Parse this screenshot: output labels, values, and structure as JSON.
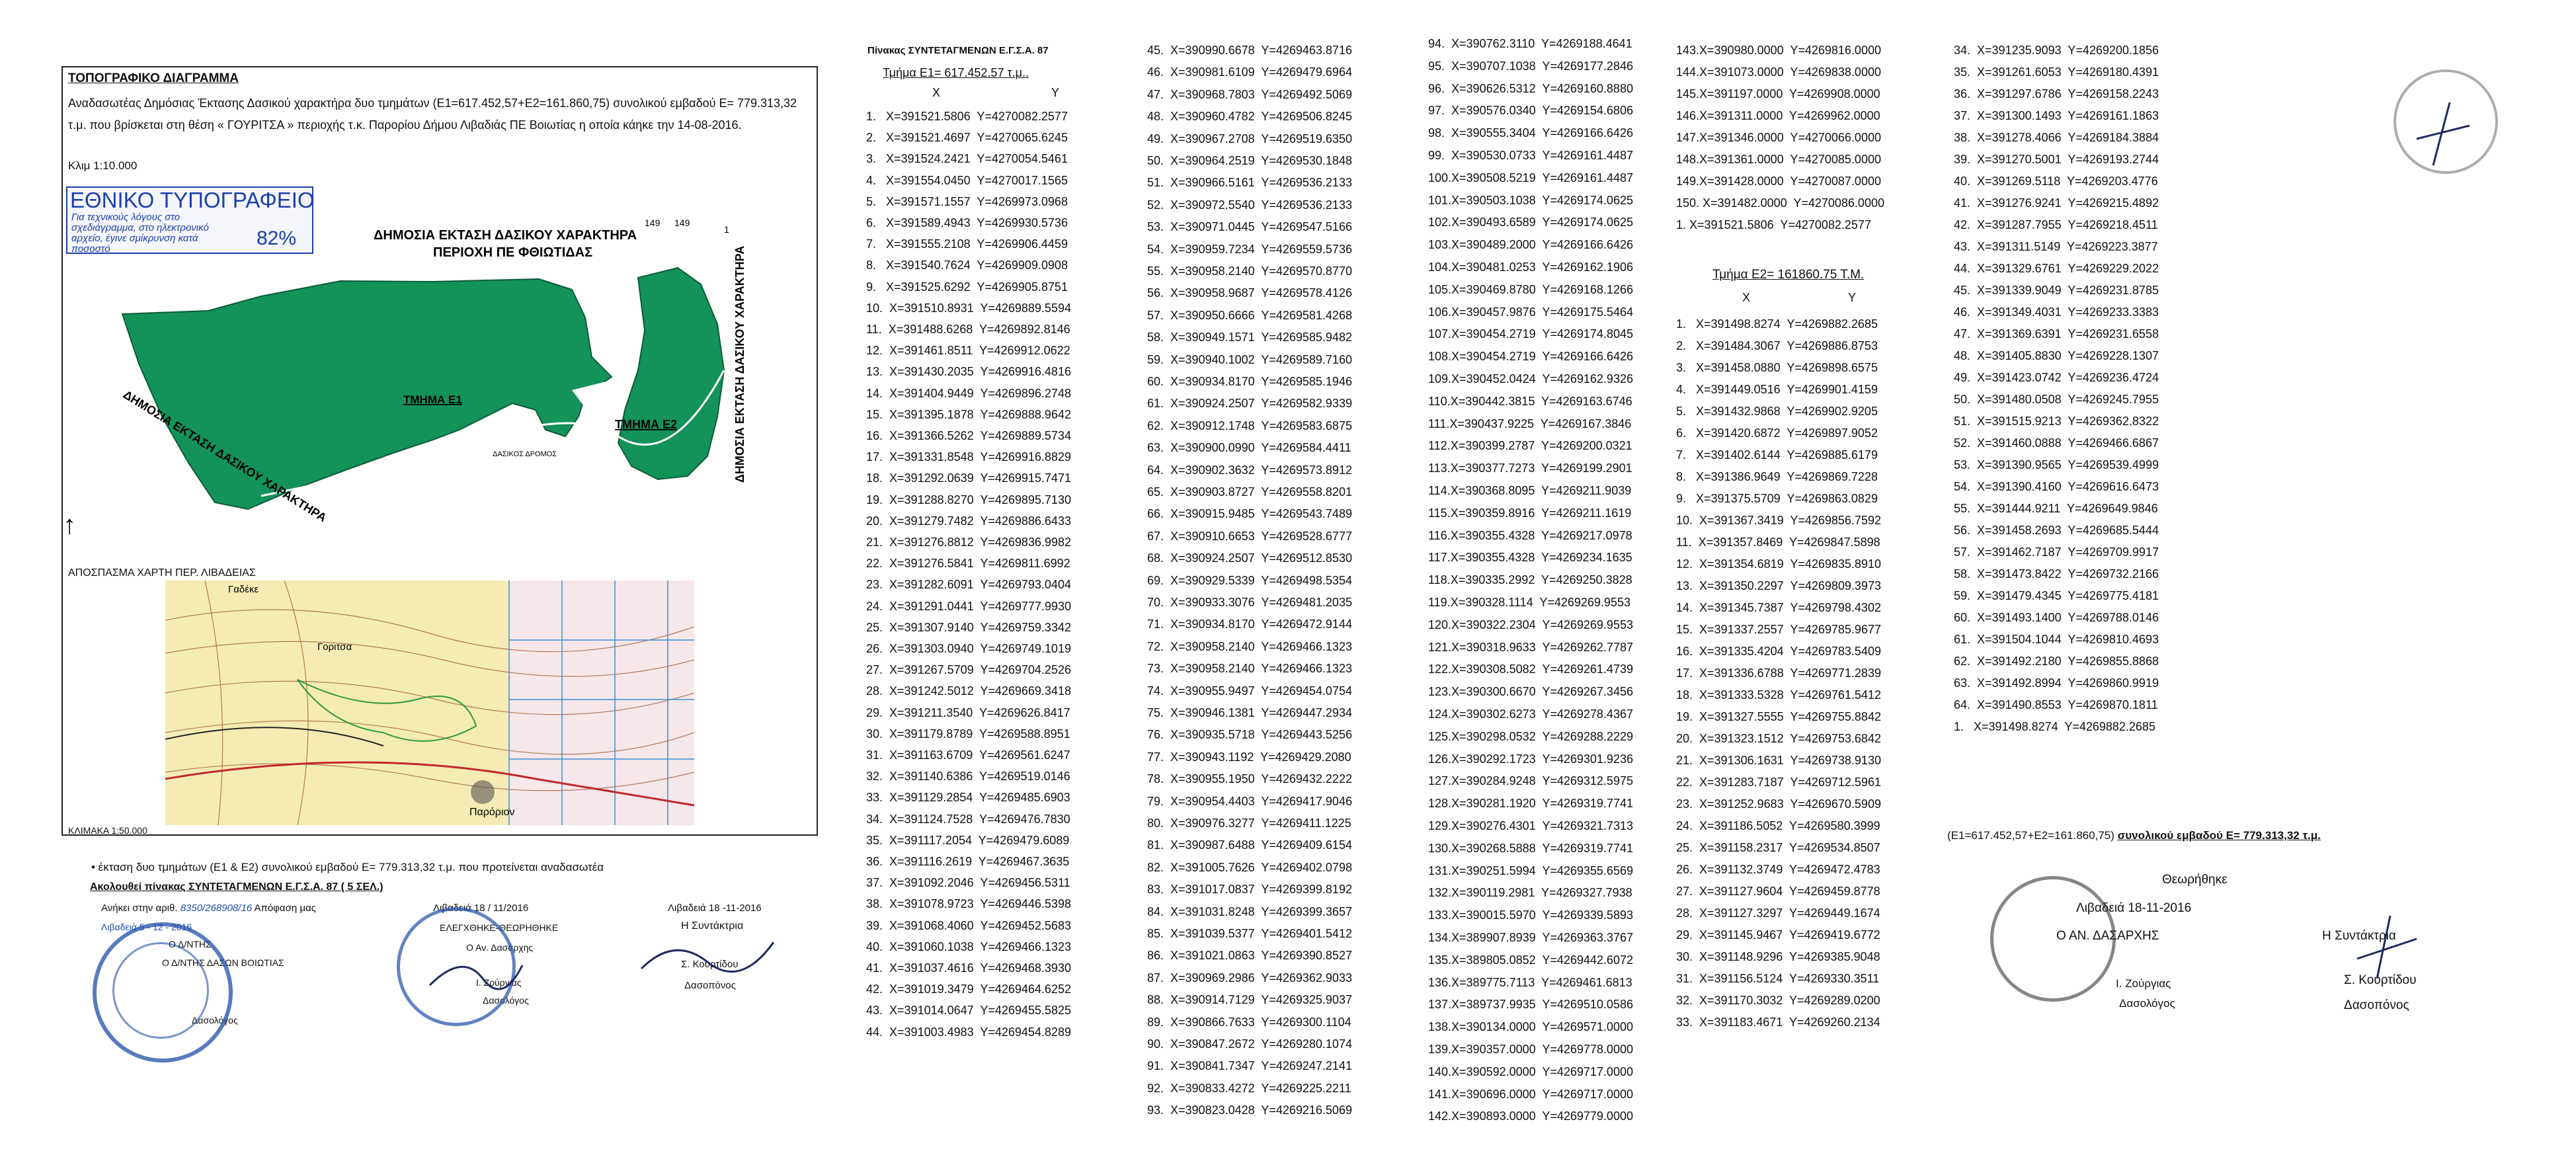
{
  "left_sheet": {
    "title": "ΤΟΠΟΓΡΑΦΙΚΟ ΔΙΑΓΡΑΜΜΑ",
    "description": "Αναδασωτέας Δημόσιας Έκτασης Δασικού χαρακτήρα δυο τμημάτων (Ε1=617.452,57+Ε2=161.860,75) συνολικού εμβαδού Ε= 779.313,32 τ.μ. που βρίσκεται στη θέση « ΓΟΥΡΙΤΣΑ » περιοχής τ.κ. Παρορίου Δήμου Λιβαδιάς ΠΕ Βοιωτίας η οποία κάηκε την 14-08-2016.",
    "scale": "Κλιμ 1:10.000",
    "badge": {
      "title": "ΕΘΝΙΚΟ ΤΥΠΟΓΡΑΦΕΙΟ",
      "text": "Για τεχνικούς λόγους στο σχεδιάγραμμα, στο ηλεκτρονικό αρχείο, έγινε σμίκρυνση κατά ποσοστό",
      "percent": "82%"
    },
    "map_labels": {
      "north_area": "ΔΗΜΟΣΙΑ ΕΚΤΑΣΗ ΔΑΣΙΚΟΥ ΧΑΡΑΚΤΗΡΑ",
      "north_area2": "ΠΕΡΙΟΧΗ ΠΕ ΦΘΙΩΤΙΔΑΣ",
      "section1": "ΤΜΗΜΑ Ε1",
      "section2": "ΤΜΗΜΑ Ε2",
      "east_area": "ΔΗΜΟΣΙΑ ΕΚΤΑΣΗ ΔΑΣΙΚΟΥ ΧΑΡΑΚΤΗΡΑ",
      "west_area": "ΔΗΜΟΣΙΑ ΕΚΤΑΣΗ ΔΑΣΙΚΟΥ ΧΑΡΑΚΤΗΡΑ",
      "road": "ΔΑΣΙΚΟΣ ΔΡΟΜΟΣ",
      "point_a": "149",
      "point_b": "149",
      "point_c": "1"
    },
    "inset_caption": "ΑΠΟΣΠΑΣΜΑ ΧΑΡΤΗ ΠΕΡ. ΛΙΒΑΔΕΙΑΣ",
    "inset_scale": "ΚΛΙΜΑΚΑ 1:50.000",
    "inset_labels": {
      "village": "Παρόριον",
      "place1": "Γαδέκε",
      "place2": "Γοριτσα"
    },
    "note": "•   έκταση δυο τμημάτων (Ε1 & Ε2)  συνολικού εμβαδού Ε= 779.313,32 τ.μ. που προτείνεται αναδασωτέα",
    "note2": "Ακολουθεί πίνακας ΣΥΝΤΕΤΑΓΜΕΝΩΝ Ε.Γ.Σ.Α. 87  ( 5 ΣΕΛ.)",
    "belongs": "Ανήκει στην αριθ.",
    "belongs_num": "8350/268908/16",
    "decision": "Απόφαση    μας",
    "place_date_mid": "Λιβαδειά 18 / 11/2016",
    "place_date_right": "Λιβαδειά 18 -11-2016",
    "place_date_left": "Λιβαδειά 5 - 12 - 2016",
    "checked": "ΕΛΕΓΧΘΗΚΕ-ΘΕΩΡΗΘΗΚΕ",
    "director": "Ο Αν. Δασάρχης",
    "sig_mid_name": "Ι. Ζούργιας",
    "sig_mid_role": "Δασολόγος",
    "org1": "Ο Δ/ΝΤΗΣ",
    "org2": "Ο Δ/ΝΤΗΣ ΔΑΣΩΝ ΒΟΙΩΤΙΑΣ",
    "sig_left_role": "Δασολόγος",
    "sig_title": "Η  Συντάκτρια",
    "sig_name": "Σ. Κουρτίδου",
    "sig_role": "Δασοπόνος"
  },
  "table": {
    "title": "Πίνακας ΣΥΝΤΕΤΑΓΜΕΝΩΝ Ε.Γ.Σ.Α. 87",
    "e1_title": "Τμήμα Ε1=  617.452.57 τ.μ..",
    "e2_title": "Τμήμα  Ε2= 161860.75 Τ.Μ.",
    "col_x": "X",
    "col_y": "Y",
    "e1_col1": [
      "1.   X=391521.5806  Y=4270082.2577",
      "2.   X=391521.4697  Y=4270065.6245",
      "3.   X=391524.2421  Y=4270054.5461",
      "4.   X=391554.0450  Y=4270017.1565",
      "5.   X=391571.1557  Y=4269973.0968",
      "6.   X=391589.4943  Y=4269930.5736",
      "7.   X=391555.2108  Y=4269906.4459",
      "8.   X=391540.7624  Y=4269909.0908",
      "9.   X=391525.6292  Y=4269905.8751",
      "10.  X=391510.8931  Y=4269889.5594",
      "11.  X=391488.6268  Y=4269892.8146",
      "12.  X=391461.8511  Y=4269912.0622",
      "13.  X=391430.2035  Y=4269916.4816",
      "14.  X=391404.9449  Y=4269896.2748",
      "15.  X=391395.1878  Y=4269888.9642",
      "16.  X=391366.5262  Y=4269889.5734",
      "17.  X=391331.8548  Y=4269916.8829",
      "18.  X=391292.0639  Y=4269915.7471",
      "19.  X=391288.8270  Y=4269895.7130",
      "20.  X=391279.7482  Y=4269886.6433",
      "21.  X=391276.8812  Y=4269836.9982",
      "22.  X=391276.5841  Y=4269811.6992",
      "23.  X=391282.6091  Y=4269793.0404",
      "24.  X=391291.0441  Y=4269777.9930",
      "25.  X=391307.9140  Y=4269759.3342",
      "26.  X=391303.0940  Y=4269749.1019",
      "27.  X=391267.5709  Y=4269704.2526",
      "28.  X=391242.5012  Y=4269669.3418",
      "29.  X=391211.3540  Y=4269626.8417",
      "30.  X=391179.8789  Y=4269588.8951",
      "31.  X=391163.6709  Y=4269561.6247",
      "32.  X=391140.6386  Y=4269519.0146",
      "33.  X=391129.2854  Y=4269485.6903",
      "34.  X=391124.7528  Y=4269476.7830",
      "35.  X=391117.2054  Y=4269479.6089",
      "36.  X=391116.2619  Y=4269467.3635",
      "37.  X=391092.2046  Y=4269456.5311",
      "38.  X=391078.9723  Y=4269446.5398",
      "39.  X=391068.4060  Y=4269452.5683",
      "40.  X=391060.1038  Y=4269466.1323",
      "41.  X=391037.4616  Y=4269468.3930",
      "42.  X=391019.3479  Y=4269464.6252",
      "43.  X=391014.0647  Y=4269455.5825",
      "44.  X=391003.4983  Y=4269454.8289"
    ],
    "e1_col2": [
      "45.  X=390990.6678  Y=4269463.8716",
      "46.  X=390981.6109  Y=4269479.6964",
      "47.  X=390968.7803  Y=4269492.5069",
      "48.  X=390960.4782  Y=4269506.8245",
      "49.  X=390967.2708  Y=4269519.6350",
      "50.  X=390964.2519  Y=4269530.1848",
      "51.  X=390966.5161  Y=4269536.2133",
      "52.  X=390972.5540  Y=4269536.2133",
      "53.  X=390971.0445  Y=4269547.5166",
      "54.  X=390959.7234  Y=4269559.5736",
      "55.  X=390958.2140  Y=4269570.8770",
      "56.  X=390958.9687  Y=4269578.4126",
      "57.  X=390950.6666  Y=4269581.4268",
      "58.  X=390949.1571  Y=4269585.9482",
      "59.  X=390940.1002  Y=4269589.7160",
      "60.  X=390934.8170  Y=4269585.1946",
      "61.  X=390924.2507  Y=4269582.9339",
      "62.  X=390912.1748  Y=4269583.6875",
      "63.  X=390900.0990  Y=4269584.4411",
      "64.  X=390902.3632  Y=4269573.8912",
      "65.  X=390903.8727  Y=4269558.8201",
      "66.  X=390915.9485  Y=4269543.7489",
      "67.  X=390910.6653  Y=4269528.6777",
      "68.  X=390924.2507  Y=4269512.8530",
      "69.  X=390929.5339  Y=4269498.5354",
      "70.  X=390933.3076  Y=4269481.2035",
      "71.  X=390934.8170  Y=4269472.9144",
      "72.  X=390958.2140  Y=4269466.1323",
      "73.  X=390958.2140  Y=4269466.1323",
      "74.  X=390955.9497  Y=4269454.0754",
      "75.  X=390946.1381  Y=4269447.2934",
      "76.  X=390935.5718  Y=4269443.5256",
      "77.  X=390943.1192  Y=4269429.2080",
      "78.  X=390955.1950  Y=4269432.2222",
      "79.  X=390954.4403  Y=4269417.9046",
      "80.  X=390976.3277  Y=4269411.1225",
      "81.  X=390987.6488  Y=4269409.6154",
      "82.  X=391005.7626  Y=4269402.0798",
      "83.  X=391017.0837  Y=4269399.8192",
      "84.  X=391031.8248  Y=4269399.3657",
      "85.  X=391039.5377  Y=4269401.5412",
      "86.  X=391021.0863  Y=4269390.8527",
      "87.  X=390969.2986  Y=4269362.9033",
      "88.  X=390914.7129  Y=4269325.9037",
      "89.  X=390866.7633  Y=4269300.1104",
      "90.  X=390847.2672  Y=4269280.1074",
      "91.  X=390841.7347  Y=4269247.2141",
      "92.  X=390833.4272  Y=4269225.2211",
      "93.  X=390823.0428  Y=4269216.5069"
    ],
    "e1_col3": [
      "94.  X=390762.3110  Y=4269188.4641",
      "95.  X=390707.1038  Y=4269177.2846",
      "96.  X=390626.5312  Y=4269160.8880",
      "97.  X=390576.0340  Y=4269154.6806",
      "98.  X=390555.3404  Y=4269166.6426",
      "99.  X=390530.0733  Y=4269161.4487",
      "100.X=390508.5219  Y=4269161.4487",
      "101.X=390503.1038  Y=4269174.0625",
      "102.X=390493.6589  Y=4269174.0625",
      "103.X=390489.2000  Y=4269166.6426",
      "104.X=390481.0253  Y=4269162.1906",
      "105.X=390469.8780  Y=4269168.1266",
      "106.X=390457.9876  Y=4269175.5464",
      "107.X=390454.2719  Y=4269174.8045",
      "108.X=390454.2719  Y=4269166.6426",
      "109.X=390452.0424  Y=4269162.9326",
      "110.X=390442.3815  Y=4269163.6746",
      "111.X=390437.9225  Y=4269167.3846",
      "112.X=390399.2787  Y=4269200.0321",
      "113.X=390377.7273  Y=4269199.2901",
      "114.X=390368.8095  Y=4269211.9039",
      "115.X=390359.8916  Y=4269211.1619",
      "116.X=390355.4328  Y=4269217.0978",
      "117.X=390355.4328  Y=4269234.1635",
      "118.X=390335.2992  Y=4269250.3828",
      "119.X=390328.1114  Y=4269269.9553",
      "120.X=390322.2304  Y=4269269.9553",
      "121.X=390318.9633  Y=4269262.7787",
      "122.X=390308.5082  Y=4269261.4739",
      "123.X=390300.6670  Y=4269267.3456",
      "124.X=390302.6273  Y=4269278.4367",
      "125.X=390298.0532  Y=4269288.2229",
      "126.X=390292.1723  Y=4269301.9236",
      "127.X=390284.9248  Y=4269312.5975",
      "128.X=390281.1920  Y=4269319.7741",
      "129.X=390276.4301  Y=4269321.7313",
      "130.X=390268.5888  Y=4269319.7741",
      "131.X=390251.5994  Y=4269355.6569",
      "132.X=390119.2981  Y=4269327.7938",
      "133.X=390015.5970  Y=4269339.5893",
      "134.X=389907.8939  Y=4269363.3767",
      "135.X=389805.0852  Y=4269442.6072",
      "136.X=389775.7113  Y=4269461.6813",
      "137.X=389737.9935  Y=4269510.0586",
      "138.X=390134.0000  Y=4269571.0000",
      "139.X=390357.0000  Y=4269778.0000",
      "140.X=390592.0000  Y=4269717.0000",
      "141.X=390696.0000  Y=4269717.0000",
      "142.X=390893.0000  Y=4269779.0000"
    ],
    "e1_col4": [
      "143.X=390980.0000  Y=4269816.0000",
      "144.X=391073.0000  Y=4269838.0000",
      "145.X=391197.0000  Y=4269908.0000",
      "146.X=391311.0000  Y=4269962.0000",
      "147.X=391346.0000  Y=4270066.0000",
      "148.X=391361.0000  Y=4270085.0000",
      "149.X=391428.0000  Y=4270087.0000",
      "150. X=391482.0000  Y=4270086.0000",
      "1. X=391521.5806  Y=4270082.2577"
    ],
    "e2_col4": [
      "1.   X=391498.8274  Y=4269882.2685",
      "2.   X=391484.3067  Y=4269886.8753",
      "3.   X=391458.0880  Y=4269898.6575",
      "4.   X=391449.0516  Y=4269901.4159",
      "5.   X=391432.9868  Y=4269902.9205",
      "6.   X=391420.6872  Y=4269897.9052",
      "7.   X=391402.6144  Y=4269885.6179",
      "8.   X=391386.9649  Y=4269869.7228",
      "9.   X=391375.5709  Y=4269863.0829",
      "10.  X=391367.3419  Y=4269856.7592",
      "11.  X=391357.8469  Y=4269847.5898",
      "12.  X=391354.6819  Y=4269835.8910",
      "13.  X=391350.2297  Y=4269809.3973",
      "14.  X=391345.7387  Y=4269798.4302",
      "15.  X=391337.2557  Y=4269785.9677",
      "16.  X=391335.4204  Y=4269783.5409",
      "17.  X=391336.6788  Y=4269771.2839",
      "18.  X=391333.5328  Y=4269761.5412",
      "19.  X=391327.5555  Y=4269755.8842",
      "20.  X=391323.1512  Y=4269753.6842",
      "21.  X=391306.1631  Y=4269738.9130",
      "22.  X=391283.7187  Y=4269712.5961",
      "23.  X=391252.9683  Y=4269670.5909",
      "24.  X=391186.5052  Y=4269580.3999",
      "25.  X=391158.2317  Y=4269534.8507",
      "26.  X=391132.3749  Y=4269472.4783",
      "27.  X=391127.9604  Y=4269459.8778",
      "28.  X=391127.3297  Y=4269449.1674",
      "29.  X=391145.9467  Y=4269419.6772",
      "30.  X=391148.9296  Y=4269385.9048",
      "31.  X=391156.5124  Y=4269330.3511",
      "32.  X=391170.3032  Y=4269289.0200",
      "33.  X=391183.4671  Y=4269260.2134"
    ],
    "e2_col5": [
      "34.  X=391235.9093  Y=4269200.1856",
      "35.  X=391261.6053  Y=4269180.4391",
      "36.  X=391297.6786  Y=4269158.2243",
      "37.  X=391300.1493  Y=4269161.1863",
      "38.  X=391278.4066  Y=4269184.3884",
      "39.  X=391270.5001  Y=4269193.2744",
      "40.  X=391269.5118  Y=4269203.4776",
      "41.  X=391276.9241  Y=4269215.4892",
      "42.  X=391287.7955  Y=4269218.4511",
      "43.  X=391311.5149  Y=4269223.3877",
      "44.  X=391329.6761  Y=4269229.2022",
      "45.  X=391339.9049  Y=4269231.8785",
      "46.  X=391349.4031  Y=4269233.3383",
      "47.  X=391369.6391  Y=4269231.6558",
      "48.  X=391405.8830  Y=4269228.1307",
      "49.  X=391423.0742  Y=4269236.4724",
      "50.  X=391480.0508  Y=4269245.7955",
      "51.  X=391515.9213  Y=4269362.8322",
      "52.  X=391460.0888  Y=4269466.6867",
      "53.  X=391390.9565  Y=4269539.4999",
      "54.  X=391390.4160  Y=4269616.6473",
      "55.  X=391444.9211  Y=4269649.9846",
      "56.  X=391458.2693  Y=4269685.5444",
      "57.  X=391462.7187  Y=4269709.9917",
      "58.  X=391473.8422  Y=4269732.2166",
      "59.  X=391479.4345  Y=4269775.4181",
      "60.  X=391493.1400  Y=4269788.0146",
      "61.  X=391504.1044  Y=4269810.4693",
      "62.  X=391492.2180  Y=4269855.8868",
      "63.  X=391492.8994  Y=4269860.9919",
      "64.  X=391490.8553  Y=4269870.1811",
      "1.   X=391498.8274  Y=4269882.2685"
    ],
    "total": "(Ε1=617.452,57+Ε2=161.860,75)",
    "total_b": "συνολικού εμβαδού  Ε= 779.313,32 τ.μ.",
    "right_checked": "Θεωρήθηκε",
    "right_date": "Λιβαδειά 18-11-2016",
    "right_director": "Ο ΑΝ.   ΔΑΣΑΡΧΗΣ",
    "right_sig_name": "Ι. Ζούργιας",
    "right_sig_role": "Δασολόγος",
    "right_author": "Η  Συντάκτρια",
    "right_author_name": "Σ. Κουρτίδου",
    "right_author_role": "Δασοπόνος"
  },
  "colors": {
    "forest": "#13925a",
    "stamp_blue": "#1f4fa8",
    "ink": "#111111"
  }
}
